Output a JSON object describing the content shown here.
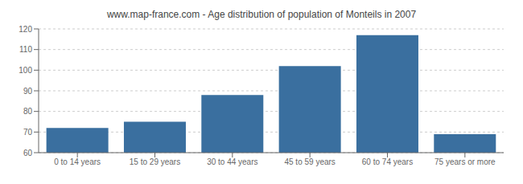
{
  "chart_data": {
    "type": "bar",
    "title": "www.map-france.com - Age distribution of population of Monteils in 2007",
    "categories": [
      "0 to 14 years",
      "15 to 29 years",
      "30 to 44 years",
      "45 to 59 years",
      "60 to 74 years",
      "75 years or more"
    ],
    "values": [
      72,
      75,
      88,
      102,
      117,
      69
    ],
    "color": "#3a6f9f",
    "ylim": [
      60,
      120
    ],
    "yticks": [
      60,
      70,
      80,
      90,
      100,
      110,
      120
    ],
    "grid": true
  }
}
